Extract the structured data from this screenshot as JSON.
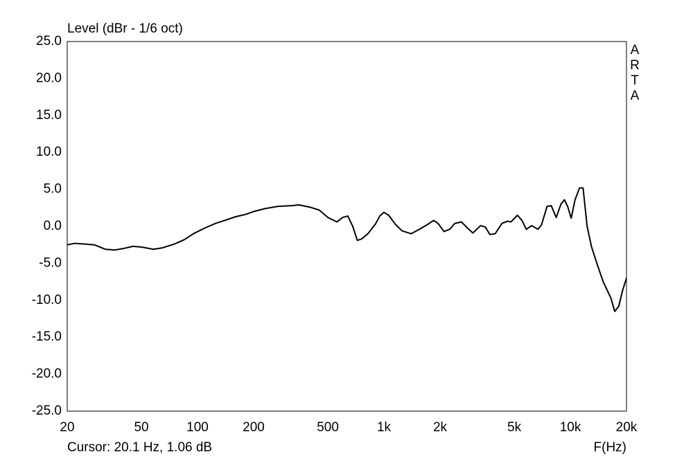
{
  "chart_data": {
    "type": "line",
    "title": "Level (dBr - 1/6 oct)",
    "x_label": "F(Hz)",
    "annotations": [
      "A",
      "R",
      "T",
      "A"
    ],
    "cursor": "Cursor: 20.1 Hz, 1.06 dB",
    "log_x": true,
    "grid": true,
    "xlim": [
      20,
      20000
    ],
    "xticks": [
      20,
      50,
      100,
      200,
      500,
      {
        "value": 1000,
        "label": "1k"
      },
      {
        "value": 2000,
        "label": "2k"
      },
      {
        "value": 5000,
        "label": "5k"
      },
      {
        "value": 10000,
        "label": "10k"
      },
      {
        "value": 20000,
        "label": "20k"
      }
    ],
    "xminor": [
      30,
      40,
      60,
      70,
      80,
      90,
      300,
      400,
      600,
      700,
      800,
      900,
      3000,
      4000,
      6000,
      7000,
      8000,
      9000
    ],
    "ylim": [
      -25,
      25
    ],
    "yticks": [
      {
        "value": 25,
        "label": "25.0"
      },
      {
        "value": 20,
        "label": "20.0"
      },
      {
        "value": 15,
        "label": "15.0"
      },
      {
        "value": 10,
        "label": "10.0"
      },
      {
        "value": 5,
        "label": "5.0"
      },
      {
        "value": 0,
        "label": "0.0"
      },
      {
        "value": -5,
        "label": "-5.0"
      },
      {
        "value": -10,
        "label": "-10.0"
      },
      {
        "value": -15,
        "label": "-15.0"
      },
      {
        "value": -20,
        "label": "-20.0"
      },
      {
        "value": -25,
        "label": "-25.0"
      }
    ],
    "series": [
      {
        "color": "#000000",
        "x": [
          20,
          22,
          25,
          28,
          32,
          36,
          40,
          45,
          50,
          58,
          65,
          75,
          85,
          95,
          110,
          125,
          140,
          160,
          180,
          200,
          230,
          270,
          320,
          350,
          400,
          450,
          500,
          560,
          600,
          640,
          680,
          720,
          760,
          820,
          900,
          950,
          1000,
          1060,
          1150,
          1250,
          1400,
          1550,
          1700,
          1850,
          1950,
          2100,
          2250,
          2400,
          2600,
          2800,
          3000,
          3300,
          3500,
          3700,
          3950,
          4300,
          4600,
          4800,
          5200,
          5500,
          5800,
          6200,
          6700,
          7000,
          7500,
          7900,
          8400,
          8900,
          9300,
          9700,
          10100,
          10600,
          11200,
          11700,
          12300,
          13000,
          14000,
          15000,
          16500,
          17300,
          18200,
          19000,
          20000
        ],
        "values": [
          -2.5,
          -2.3,
          -2.4,
          -2.5,
          -3.1,
          -3.2,
          -3.0,
          -2.7,
          -2.8,
          -3.1,
          -2.9,
          -2.4,
          -1.8,
          -1.0,
          -0.2,
          0.4,
          0.8,
          1.3,
          1.6,
          2.0,
          2.4,
          2.7,
          2.8,
          2.9,
          2.6,
          2.2,
          1.2,
          0.6,
          1.2,
          1.4,
          0.0,
          -1.9,
          -1.7,
          -1.0,
          0.3,
          1.4,
          1.9,
          1.5,
          0.3,
          -0.6,
          -1.0,
          -0.4,
          0.2,
          0.8,
          0.4,
          -0.7,
          -0.4,
          0.4,
          0.6,
          -0.2,
          -0.9,
          0.1,
          -0.1,
          -1.1,
          -1.0,
          0.4,
          0.7,
          0.6,
          1.5,
          0.8,
          -0.4,
          0.1,
          -0.4,
          0.2,
          2.7,
          2.8,
          1.2,
          3.0,
          3.6,
          2.6,
          1.1,
          3.6,
          5.2,
          5.2,
          0.0,
          -2.8,
          -5.3,
          -7.5,
          -9.7,
          -11.5,
          -10.8,
          -8.8,
          -7.0
        ]
      }
    ]
  }
}
